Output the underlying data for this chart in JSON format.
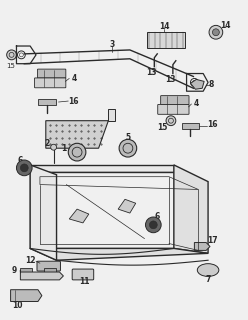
{
  "bg_color": "#f0f0f0",
  "fg_color": "#2a2a2a",
  "line_color": "#3a3a3a"
}
